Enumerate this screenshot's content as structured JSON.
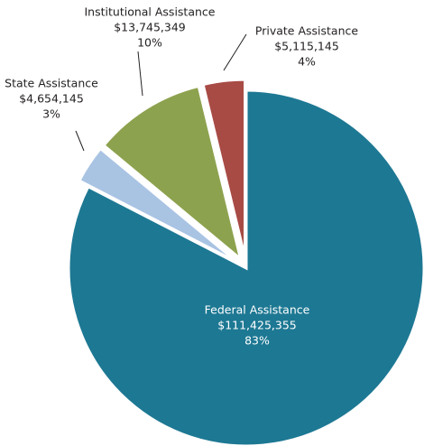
{
  "chart_data": {
    "type": "pie",
    "categories": [
      "Federal Assistance",
      "State Assistance",
      "Institutional Assistance",
      "Private Assistance"
    ],
    "values": [
      83,
      3,
      10,
      4
    ],
    "value_labels": [
      "83%",
      "3%",
      "10%",
      "4%"
    ],
    "amounts": [
      111425355,
      4654145,
      13745349,
      5115145
    ],
    "amount_labels": [
      "$111,425,355",
      "$4,654,145",
      "$13,745,349",
      "$5,115,145"
    ],
    "colors": [
      "#1d7893",
      "#a9c3e3",
      "#8da24e",
      "#a84b45"
    ]
  }
}
